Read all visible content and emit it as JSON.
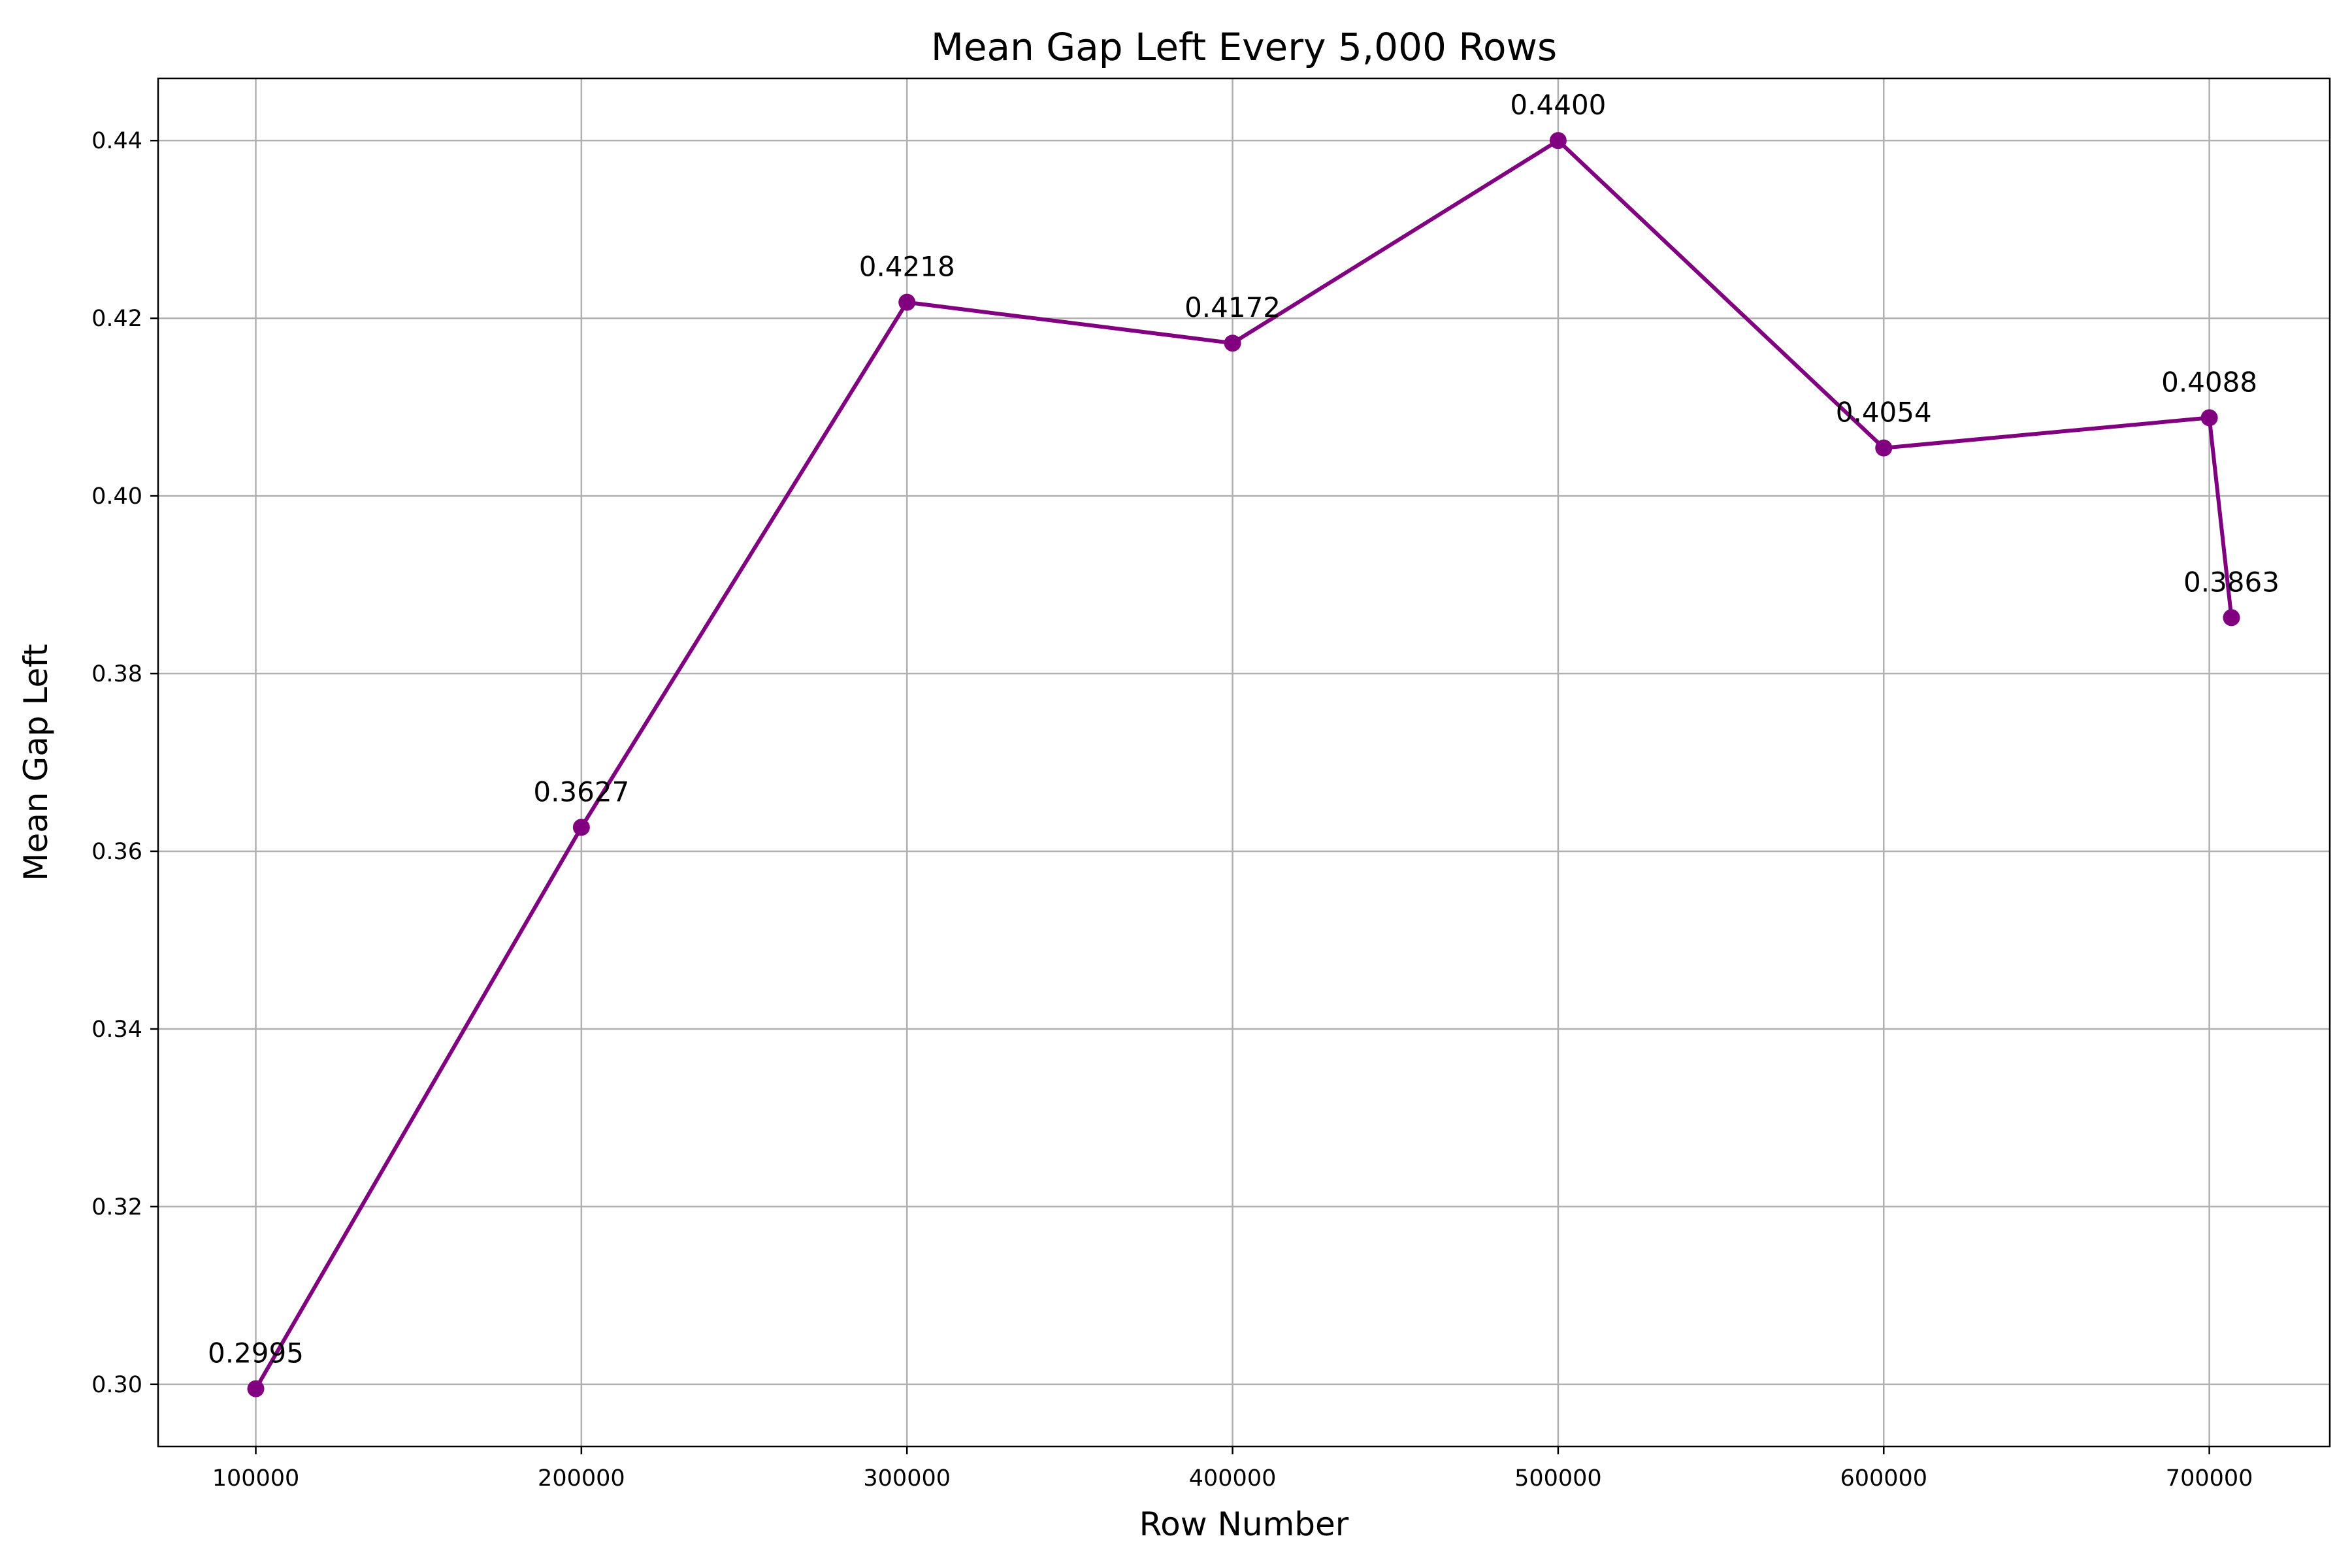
{
  "chart_data": {
    "type": "line",
    "title": "Mean Gap Left Every 5,000 Rows",
    "xlabel": "Row Number",
    "ylabel": "Mean Gap Left",
    "xlim": [
      70000,
      737000
    ],
    "ylim": [
      0.293,
      0.447
    ],
    "xticks": [
      100000,
      200000,
      300000,
      400000,
      500000,
      600000,
      700000
    ],
    "yticks": [
      0.3,
      0.32,
      0.34,
      0.36,
      0.38,
      0.4,
      0.42,
      0.44
    ],
    "ytick_labels": [
      "0.30",
      "0.32",
      "0.34",
      "0.36",
      "0.38",
      "0.40",
      "0.42",
      "0.44"
    ],
    "grid": true,
    "series": [
      {
        "color": "#800080",
        "marker": "circle",
        "x": [
          100000,
          200000,
          300000,
          400000,
          500000,
          600000,
          700000,
          706800
        ],
        "y": [
          0.2995,
          0.3627,
          0.4218,
          0.4172,
          0.44,
          0.4054,
          0.4088,
          0.3863
        ],
        "labels": [
          "0.2995",
          "0.3627",
          "0.4218",
          "0.4172",
          "0.4400",
          "0.4054",
          "0.4088",
          "0.3863"
        ]
      }
    ]
  }
}
